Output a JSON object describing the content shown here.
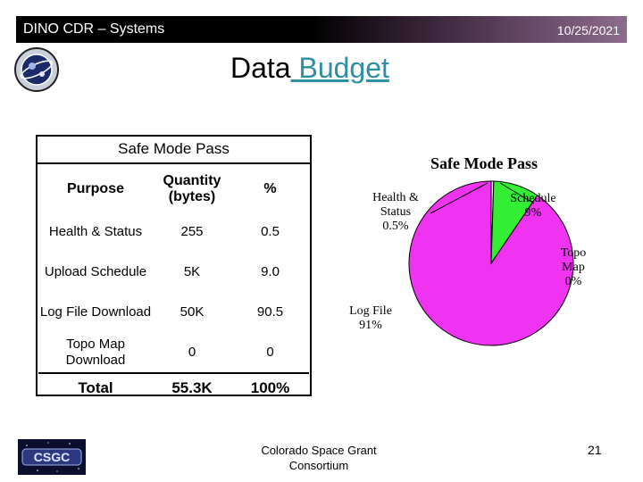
{
  "header": {
    "title": "DINO CDR – Systems",
    "date": "10/25/2021"
  },
  "slide": {
    "title_plain": "Data",
    "title_link": " Budget"
  },
  "table": {
    "caption": "Safe Mode Pass",
    "columns": [
      "Purpose",
      "Quantity (bytes)",
      "%"
    ],
    "rows": [
      {
        "purpose": "Health & Status",
        "quantity": "255",
        "percent": "0.5"
      },
      {
        "purpose": "Upload Schedule",
        "quantity": "5K",
        "percent": "9.0"
      },
      {
        "purpose": "Log File Download",
        "quantity": "50K",
        "percent": "90.5"
      },
      {
        "purpose": "Topo Map Download",
        "quantity": "0",
        "percent": "0"
      }
    ],
    "total": {
      "label": "Total",
      "quantity": "55.3K",
      "percent": "100%"
    }
  },
  "chart_data": {
    "type": "pie",
    "title": "Safe Mode Pass",
    "slices": [
      {
        "label": "Health & Status",
        "value_label": "0.5%",
        "value": 0.5,
        "color": "#e6e6e6"
      },
      {
        "label": "Schedule",
        "value_label": "9%",
        "value": 9,
        "color": "#33ee33"
      },
      {
        "label": "Topo Map",
        "value_label": "0%",
        "value": 0,
        "color": "#ffffff"
      },
      {
        "label": "Log File",
        "value_label": "91%",
        "value": 90.5,
        "color": "#f033f0"
      }
    ]
  },
  "footer": {
    "org_logo_text": "CSGC",
    "center_line1": "Colorado Space Grant",
    "center_line2": "Consortium",
    "page": "21"
  }
}
